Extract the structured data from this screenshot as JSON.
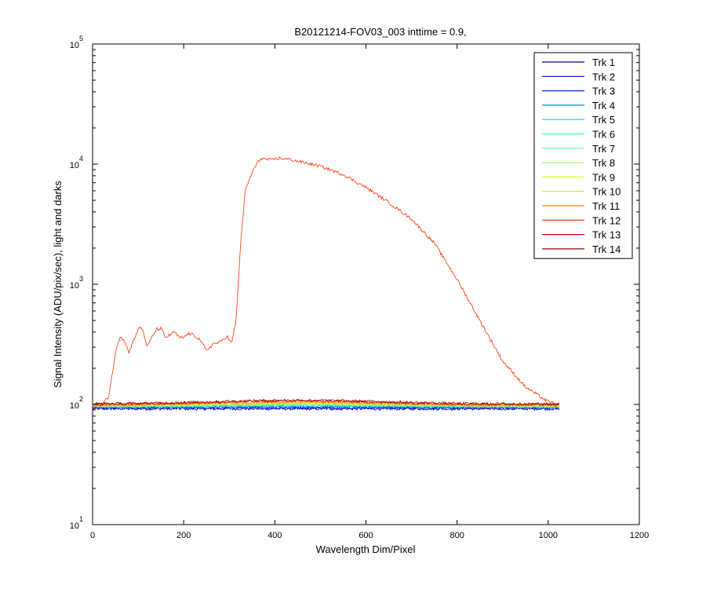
{
  "chart_data": {
    "type": "line",
    "title": "B20121214-FOV03_003 inttime = 0.9,",
    "xlabel": "Wavelength Dim/Pixel",
    "ylabel": "Signal Intensity (ADU/pix/sec), light and darks",
    "xlim": [
      0,
      1200
    ],
    "ylim": [
      10,
      100000
    ],
    "yscale": "log",
    "x_ticks": [
      0,
      200,
      400,
      600,
      800,
      1000,
      1200
    ],
    "x_tick_labels": [
      "0",
      "200",
      "400",
      "600",
      "800",
      "1000",
      "1200"
    ],
    "y_ticks": [
      {
        "value": 10,
        "base": "10",
        "exp": "1"
      },
      {
        "value": 100,
        "base": "10",
        "exp": "2"
      },
      {
        "value": 1000,
        "base": "10",
        "exp": "3"
      },
      {
        "value": 10000,
        "base": "10",
        "exp": "4"
      },
      {
        "value": 100000,
        "base": "10",
        "exp": "5"
      }
    ],
    "grid": false,
    "legend_position": "top-right",
    "series": [
      {
        "name": "Trk 1",
        "color": "#00008f",
        "level": 92,
        "noise": 5
      },
      {
        "name": "Trk 2",
        "color": "#0000df",
        "level": 93,
        "noise": 5
      },
      {
        "name": "Trk 3",
        "color": "#0030ff",
        "level": 94,
        "noise": 5
      },
      {
        "name": "Trk 4",
        "color": "#0080ff",
        "level": 95,
        "noise": 5
      },
      {
        "name": "Trk 5",
        "color": "#00cfff",
        "level": 96,
        "noise": 5
      },
      {
        "name": "Trk 6",
        "color": "#20ffdf",
        "level": 96,
        "noise": 5
      },
      {
        "name": "Trk 7",
        "color": "#60ff9f",
        "level": 97,
        "noise": 5
      },
      {
        "name": "Trk 8",
        "color": "#9fff60",
        "level": 97,
        "noise": 5
      },
      {
        "name": "Trk 9",
        "color": "#dfff20",
        "level": 98,
        "noise": 5
      },
      {
        "name": "Trk 10",
        "color": "#ffcf00",
        "level": 98,
        "noise": 5
      },
      {
        "name": "Trk 11",
        "color": "#ff8000",
        "level": 99,
        "noise": 5
      },
      {
        "name": "Trk 12",
        "color": "#ff3000",
        "level": 99,
        "noise": 5,
        "points": [
          [
            0,
            95
          ],
          [
            20,
            100
          ],
          [
            35,
            115
          ],
          [
            45,
            200
          ],
          [
            55,
            330
          ],
          [
            62,
            370
          ],
          [
            70,
            340
          ],
          [
            80,
            270
          ],
          [
            88,
            330
          ],
          [
            95,
            380
          ],
          [
            103,
            440
          ],
          [
            110,
            420
          ],
          [
            120,
            300
          ],
          [
            128,
            350
          ],
          [
            140,
            420
          ],
          [
            150,
            430
          ],
          [
            160,
            360
          ],
          [
            170,
            380
          ],
          [
            180,
            400
          ],
          [
            190,
            360
          ],
          [
            200,
            360
          ],
          [
            210,
            390
          ],
          [
            220,
            380
          ],
          [
            235,
            350
          ],
          [
            250,
            280
          ],
          [
            265,
            320
          ],
          [
            280,
            330
          ],
          [
            295,
            370
          ],
          [
            305,
            320
          ],
          [
            315,
            500
          ],
          [
            325,
            2200
          ],
          [
            335,
            6000
          ],
          [
            350,
            8500
          ],
          [
            360,
            10000
          ],
          [
            370,
            11200
          ],
          [
            390,
            10800
          ],
          [
            410,
            11200
          ],
          [
            430,
            11000
          ],
          [
            460,
            10400
          ],
          [
            500,
            9600
          ],
          [
            550,
            8200
          ],
          [
            600,
            6400
          ],
          [
            650,
            4800
          ],
          [
            700,
            3500
          ],
          [
            750,
            2200
          ],
          [
            800,
            1100
          ],
          [
            850,
            500
          ],
          [
            900,
            230
          ],
          [
            950,
            140
          ],
          [
            1000,
            105
          ],
          [
            1024,
            100
          ]
        ]
      },
      {
        "name": "Trk 13",
        "color": "#df0000",
        "level": 100,
        "noise": 5
      },
      {
        "name": "Trk 14",
        "color": "#8f0000",
        "level": 101,
        "noise": 5
      }
    ]
  }
}
